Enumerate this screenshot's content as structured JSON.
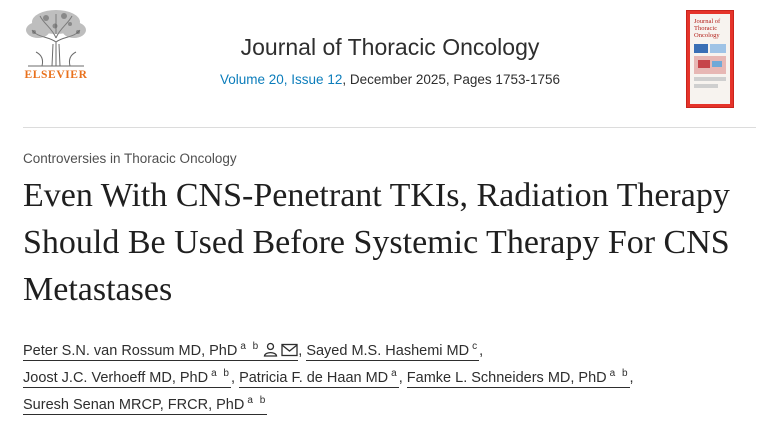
{
  "publisher": {
    "name": "ELSEVIER",
    "logo_icon": "elsevier-tree-icon"
  },
  "journal": {
    "title": "Journal of Thoracic Oncology",
    "issue_link": "Volume 20, Issue 12",
    "issue_rest": ", December 2025, Pages 1753-1756",
    "cover_title_line1": "Journal of",
    "cover_title_line2": "Thoracic",
    "cover_title_line3": "Oncology"
  },
  "article": {
    "section": "Controversies in Thoracic Oncology",
    "title": "Even With CNS-Penetrant TKIs, Radiation Therapy Should Be Used Before Systemic Therapy For CNS Metastases"
  },
  "authors": [
    {
      "name": "Peter S.N. van Rossum MD, PhD",
      "aff": "a b",
      "icons": [
        "person-icon",
        "envelope-icon"
      ]
    },
    {
      "name": "Sayed M.S. Hashemi MD",
      "aff": "c"
    },
    {
      "name": "Joost J.C. Verhoeff MD, PhD",
      "aff": "a b"
    },
    {
      "name": "Patricia F. de Haan MD",
      "aff": "a"
    },
    {
      "name": "Famke L. Schneiders MD, PhD",
      "aff": "a b"
    },
    {
      "name": "Suresh Senan MRCP, FRCR, PhD",
      "aff": "a b"
    }
  ],
  "separator": ",",
  "colors": {
    "link": "#0c7dbb",
    "publisher_orange": "#e9711c",
    "cover_red": "#e5332a"
  }
}
